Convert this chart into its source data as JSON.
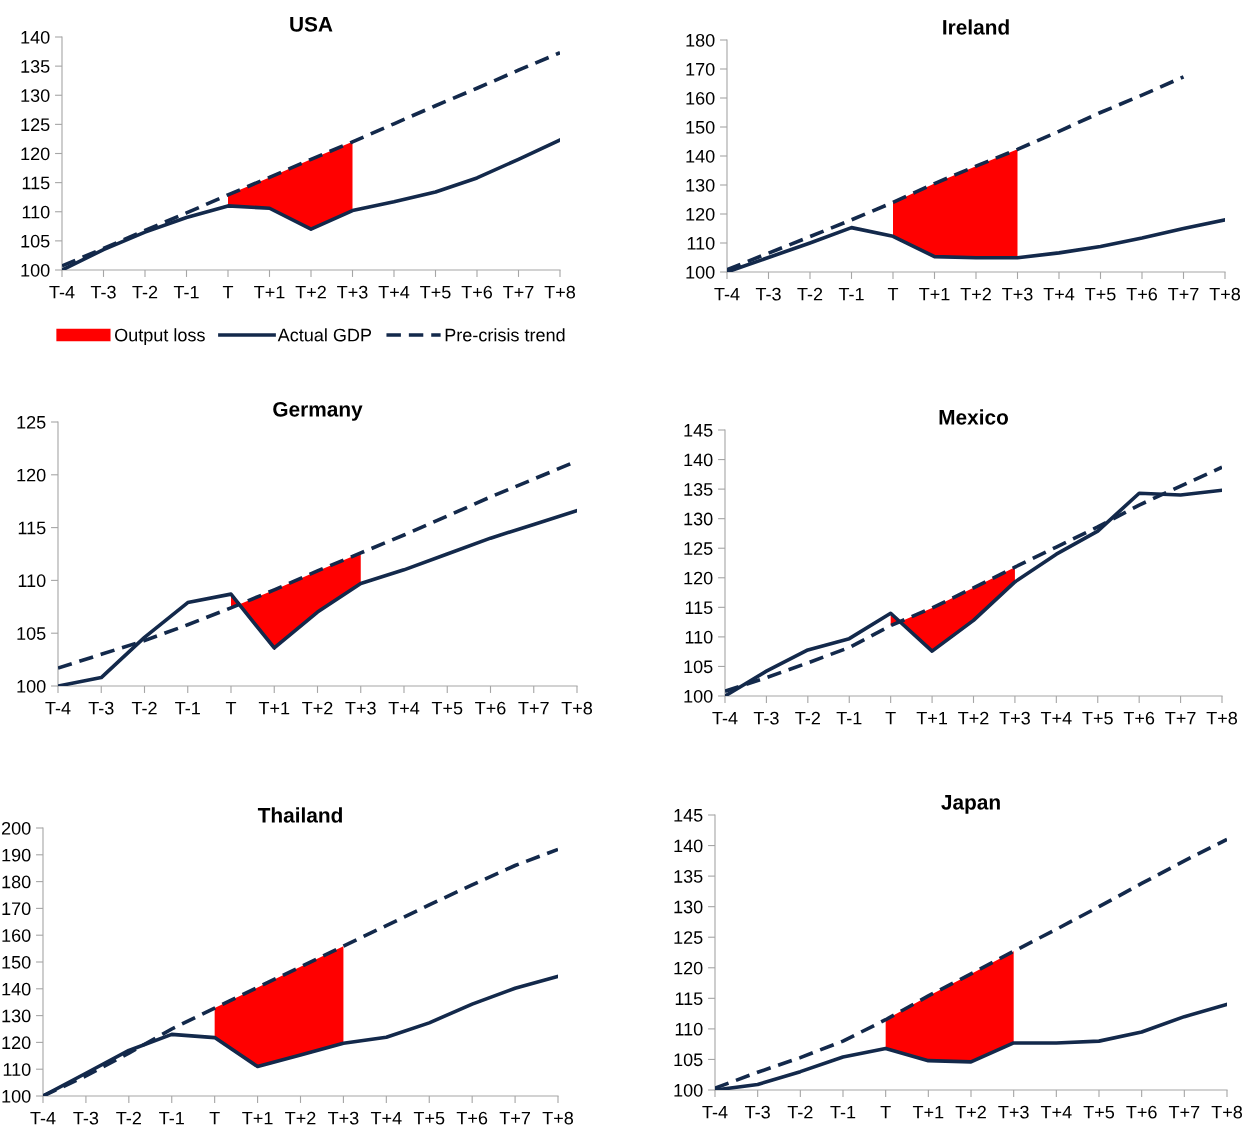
{
  "chart_data": [
    {
      "type": "line",
      "title": "USA",
      "categories": [
        "T-4",
        "T-3",
        "T-2",
        "T-1",
        "T",
        "T+1",
        "T+2",
        "T+3",
        "T+4",
        "T+5",
        "T+6",
        "T+7",
        "T+8"
      ],
      "ylim": [
        100,
        140
      ],
      "yticks": [
        100,
        105,
        110,
        115,
        120,
        125,
        130,
        135,
        140
      ],
      "legend": "bottom",
      "grid": false,
      "series": [
        {
          "name": "Output loss",
          "type": "area",
          "color": "#ff0000",
          "values": [
            null,
            null,
            null,
            null,
            112.9,
            115.9,
            119.0,
            122.0,
            null,
            null,
            null,
            null,
            null
          ]
        },
        {
          "name": "Actual GDP",
          "type": "line",
          "color": "#13294b",
          "line_style": "solid",
          "values": [
            100,
            103.5,
            106.5,
            109,
            111,
            110.6,
            107,
            110.2,
            111.7,
            113.4,
            115.8,
            119,
            122.3
          ]
        },
        {
          "name": "Pre-crisis trend",
          "type": "line",
          "color": "#13294b",
          "line_style": "dashed",
          "values": [
            100.7,
            103.7,
            106.8,
            109.8,
            112.9,
            115.9,
            119.0,
            122.0,
            125.1,
            128.2,
            131.2,
            134.3,
            137.3
          ]
        }
      ]
    },
    {
      "type": "line",
      "title": "Ireland",
      "categories": [
        "T-4",
        "T-3",
        "T-2",
        "T-1",
        "T",
        "T+1",
        "T+2",
        "T+3",
        "T+4",
        "T+5",
        "T+6",
        "T+7",
        "T+8"
      ],
      "ylim": [
        100,
        180
      ],
      "yticks": [
        100,
        110,
        120,
        130,
        140,
        150,
        160,
        170,
        180
      ],
      "grid": false,
      "series": [
        {
          "type": "area",
          "color": "#ff0000",
          "values": [
            null,
            null,
            null,
            null,
            124,
            130.5,
            136.5,
            142.3,
            null,
            null,
            null,
            null,
            null
          ]
        },
        {
          "type": "line",
          "color": "#13294b",
          "line_style": "solid",
          "values": [
            100,
            105,
            110,
            115.3,
            112.3,
            105.3,
            104.9,
            104.9,
            106.6,
            108.8,
            111.7,
            115,
            118
          ]
        },
        {
          "type": "line",
          "color": "#13294b",
          "line_style": "dashed",
          "values": [
            100.8,
            106.5,
            112.2,
            118,
            124,
            130.5,
            136.5,
            142.3,
            148.5,
            155,
            161,
            167.3,
            null
          ]
        }
      ]
    },
    {
      "type": "line",
      "title": "Germany",
      "categories": [
        "T-4",
        "T-3",
        "T-2",
        "T-1",
        "T",
        "T+1",
        "T+2",
        "T+3",
        "T+4",
        "T+5",
        "T+6",
        "T+7",
        "T+8"
      ],
      "ylim": [
        100,
        125
      ],
      "yticks": [
        100,
        105,
        110,
        115,
        120,
        125
      ],
      "grid": false,
      "series": [
        {
          "type": "area",
          "color": "#ff0000",
          "values": [
            null,
            null,
            null,
            null,
            107.4,
            109.1,
            110.9,
            112.6,
            null,
            null,
            null,
            null,
            null
          ]
        },
        {
          "type": "line",
          "color": "#13294b",
          "line_style": "solid",
          "values": [
            100,
            100.8,
            104.6,
            107.9,
            108.7,
            103.6,
            107,
            109.7,
            111,
            112.5,
            114,
            115.3,
            116.6
          ]
        },
        {
          "type": "line",
          "color": "#13294b",
          "line_style": "dashed",
          "values": [
            101.7,
            103,
            104.3,
            105.8,
            107.4,
            109.1,
            110.9,
            112.6,
            114.3,
            116.1,
            117.9,
            119.6,
            121.3
          ]
        }
      ]
    },
    {
      "type": "line",
      "title": "Mexico",
      "categories": [
        "T-4",
        "T-3",
        "T-2",
        "T-1",
        "T",
        "T+1",
        "T+2",
        "T+3",
        "T+4",
        "T+5",
        "T+6",
        "T+7",
        "T+8"
      ],
      "ylim": [
        100,
        145
      ],
      "yticks": [
        100,
        105,
        110,
        115,
        120,
        125,
        130,
        135,
        140,
        145
      ],
      "grid": false,
      "series": [
        {
          "type": "area",
          "color": "#ff0000",
          "values": [
            null,
            null,
            null,
            null,
            111.9,
            114.9,
            118.3,
            121.8,
            null,
            null,
            null,
            null,
            null
          ]
        },
        {
          "type": "line",
          "color": "#13294b",
          "line_style": "solid",
          "values": [
            100,
            104.2,
            107.8,
            109.7,
            114,
            107.6,
            112.8,
            119.3,
            124,
            127.9,
            134.3,
            134,
            134.8
          ]
        },
        {
          "type": "line",
          "color": "#13294b",
          "line_style": "dashed",
          "values": [
            100.8,
            103.1,
            105.6,
            108.2,
            111.9,
            114.9,
            118.3,
            121.8,
            125.2,
            128.6,
            132.3,
            135.5,
            138.7
          ]
        }
      ]
    },
    {
      "type": "line",
      "title": "Thailand",
      "categories": [
        "T-4",
        "T-3",
        "T-2",
        "T-1",
        "T",
        "T+1",
        "T+2",
        "T+3",
        "T+4",
        "T+5",
        "T+6",
        "T+7",
        "T+8"
      ],
      "ylim": [
        100,
        200
      ],
      "yticks": [
        100,
        110,
        120,
        130,
        140,
        150,
        160,
        170,
        180,
        190,
        200
      ],
      "grid": false,
      "series": [
        {
          "type": "area",
          "color": "#ff0000",
          "values": [
            null,
            null,
            null,
            null,
            132.8,
            140.5,
            148.2,
            155.9,
            null,
            null,
            null,
            null,
            null
          ]
        },
        {
          "type": "line",
          "color": "#13294b",
          "line_style": "solid",
          "values": [
            100,
            108.5,
            117,
            123,
            121.8,
            111,
            115.3,
            119.7,
            121.9,
            127.3,
            134.3,
            140.2,
            144.6
          ]
        },
        {
          "type": "line",
          "color": "#13294b",
          "line_style": "dashed",
          "values": [
            100,
            107.5,
            116,
            125,
            132.8,
            140.5,
            148.2,
            155.9,
            163.6,
            171.3,
            178.8,
            186,
            192
          ]
        }
      ]
    },
    {
      "type": "line",
      "title": "Japan",
      "categories": [
        "T-4",
        "T-3",
        "T-2",
        "T-1",
        "T",
        "T+1",
        "T+2",
        "T+3",
        "T+4",
        "T+5",
        "T+6",
        "T+7",
        "T+8"
      ],
      "ylim": [
        100,
        145
      ],
      "yticks": [
        100,
        105,
        110,
        115,
        120,
        125,
        130,
        135,
        140,
        145
      ],
      "grid": false,
      "series": [
        {
          "type": "area",
          "color": "#ff0000",
          "values": [
            null,
            null,
            null,
            null,
            111.5,
            115.4,
            119,
            122.7,
            null,
            null,
            null,
            null,
            null
          ]
        },
        {
          "type": "line",
          "color": "#13294b",
          "line_style": "solid",
          "values": [
            100,
            100.9,
            103,
            105.4,
            106.8,
            104.8,
            104.6,
            107.7,
            107.7,
            108,
            109.5,
            112,
            114
          ]
        },
        {
          "type": "line",
          "color": "#13294b",
          "line_style": "dashed",
          "values": [
            100.3,
            102.9,
            105.3,
            108,
            111.5,
            115.4,
            119,
            122.7,
            126.3,
            130,
            133.8,
            137.5,
            141
          ]
        }
      ]
    }
  ]
}
